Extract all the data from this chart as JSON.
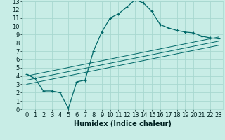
{
  "xlabel": "Humidex (Indice chaleur)",
  "bg_color": "#c8ede6",
  "grid_color": "#a8d8d0",
  "line_color": "#006868",
  "xlim": [
    -0.5,
    23.5
  ],
  "ylim": [
    0,
    13
  ],
  "xticks": [
    0,
    1,
    2,
    3,
    4,
    5,
    6,
    7,
    8,
    9,
    10,
    11,
    12,
    13,
    14,
    15,
    16,
    17,
    18,
    19,
    20,
    21,
    22,
    23
  ],
  "yticks": [
    0,
    1,
    2,
    3,
    4,
    5,
    6,
    7,
    8,
    9,
    10,
    11,
    12,
    13
  ],
  "main_line_x": [
    0,
    1,
    2,
    3,
    4,
    5,
    6,
    7,
    8,
    9,
    10,
    11,
    12,
    13,
    14,
    15,
    16,
    17,
    18,
    19,
    20,
    21,
    22,
    23
  ],
  "main_line_y": [
    4.2,
    3.7,
    2.2,
    2.2,
    2.0,
    0.1,
    3.3,
    3.5,
    7.0,
    9.3,
    11.0,
    11.5,
    12.3,
    13.2,
    12.8,
    11.8,
    10.2,
    9.8,
    9.5,
    9.3,
    9.2,
    8.8,
    8.6,
    8.5
  ],
  "line2_x": [
    0,
    23
  ],
  "line2_y": [
    4.0,
    8.7
  ],
  "line3_x": [
    0,
    23
  ],
  "line3_y": [
    3.5,
    8.2
  ],
  "line4_x": [
    0,
    23
  ],
  "line4_y": [
    3.0,
    7.7
  ],
  "font_size": 6,
  "xlabel_fontsize": 7,
  "marker": "+"
}
